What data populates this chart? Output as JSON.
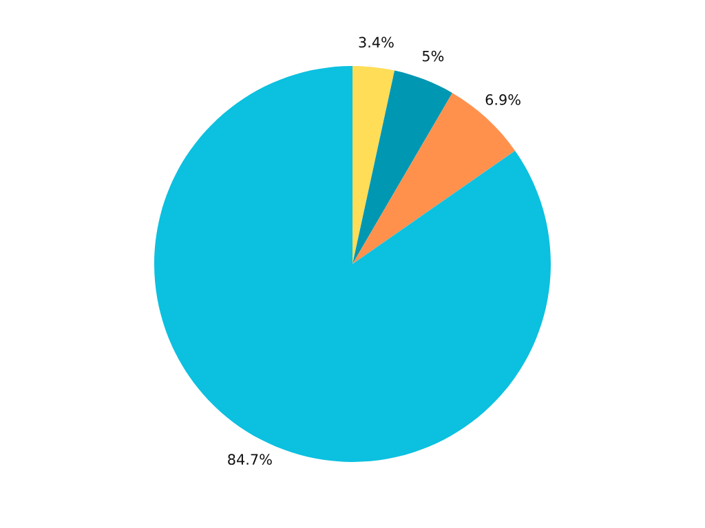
{
  "chart_data": {
    "type": "pie",
    "categories": [
      null,
      null,
      null,
      null
    ],
    "values": [
      3.4,
      5,
      6.9,
      84.7
    ],
    "value_labels": [
      "3.4%",
      "5%",
      "6.9%",
      "84.7%"
    ],
    "colors": [
      "#ffdd57",
      "#0097b2",
      "#ff914d",
      "#0cc0df"
    ],
    "legend": false
  }
}
